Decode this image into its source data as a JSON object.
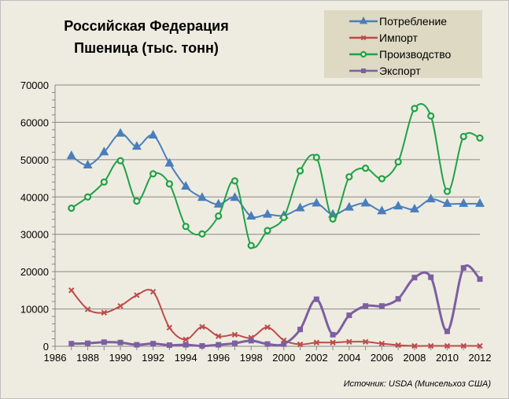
{
  "chart_data": {
    "type": "line",
    "title": [
      "Российская Федерация",
      "Пшеница (тыс. тонн)"
    ],
    "source": "Источник:  USDA  (Минсельхоз США)",
    "x": [
      1987,
      1988,
      1989,
      1990,
      1991,
      1992,
      1993,
      1994,
      1995,
      1996,
      1997,
      1998,
      1999,
      2000,
      2001,
      2002,
      2003,
      2004,
      2005,
      2006,
      2007,
      2008,
      2009,
      2010,
      2011,
      2012
    ],
    "xlim": [
      1986,
      2012
    ],
    "xticks": [
      "1986",
      "1988",
      "1990",
      "1992",
      "1994",
      "1996",
      "1998",
      "2000",
      "2002",
      "2004",
      "2006",
      "2008",
      "2010",
      "2012"
    ],
    "ylim": [
      0,
      70000
    ],
    "yticks": [
      "0",
      "10000",
      "20000",
      "30000",
      "40000",
      "50000",
      "60000",
      "70000"
    ],
    "grid": true,
    "legend_position": "top-right",
    "series": [
      {
        "name": "Потребление",
        "color": "#4a7ebb",
        "marker": "triangle",
        "values": [
          51000,
          48500,
          52000,
          57000,
          53500,
          56500,
          49000,
          42800,
          39800,
          38000,
          39800,
          34800,
          35300,
          35000,
          37000,
          38300,
          35300,
          37200,
          38300,
          36200,
          37500,
          36700,
          39400,
          38200,
          38200,
          38200
        ]
      },
      {
        "name": "Импорт",
        "color": "#be4b48",
        "marker": "x",
        "values": [
          15000,
          9900,
          9000,
          10800,
          13700,
          14600,
          5000,
          1800,
          5200,
          2700,
          3100,
          2300,
          5100,
          1600,
          500,
          1000,
          1000,
          1200,
          1200,
          700,
          300,
          100,
          100,
          100,
          100,
          100
        ]
      },
      {
        "name": "Производство",
        "color": "#1fa247",
        "marker": "circle",
        "values": [
          37000,
          40000,
          44000,
          49700,
          38900,
          46200,
          43500,
          32100,
          30100,
          34900,
          44300,
          27000,
          31000,
          34500,
          47000,
          50600,
          34100,
          45400,
          47700,
          44900,
          49400,
          63700,
          61700,
          41500,
          56200,
          55800
        ]
      },
      {
        "name": "Экспорт",
        "color": "#7d5fa0",
        "marker": "square",
        "values": [
          700,
          800,
          1100,
          1000,
          400,
          700,
          300,
          400,
          100,
          400,
          800,
          1500,
          600,
          600,
          4500,
          12600,
          3100,
          8300,
          10800,
          10800,
          12700,
          18400,
          18500,
          4000,
          21000,
          18000
        ]
      }
    ]
  }
}
